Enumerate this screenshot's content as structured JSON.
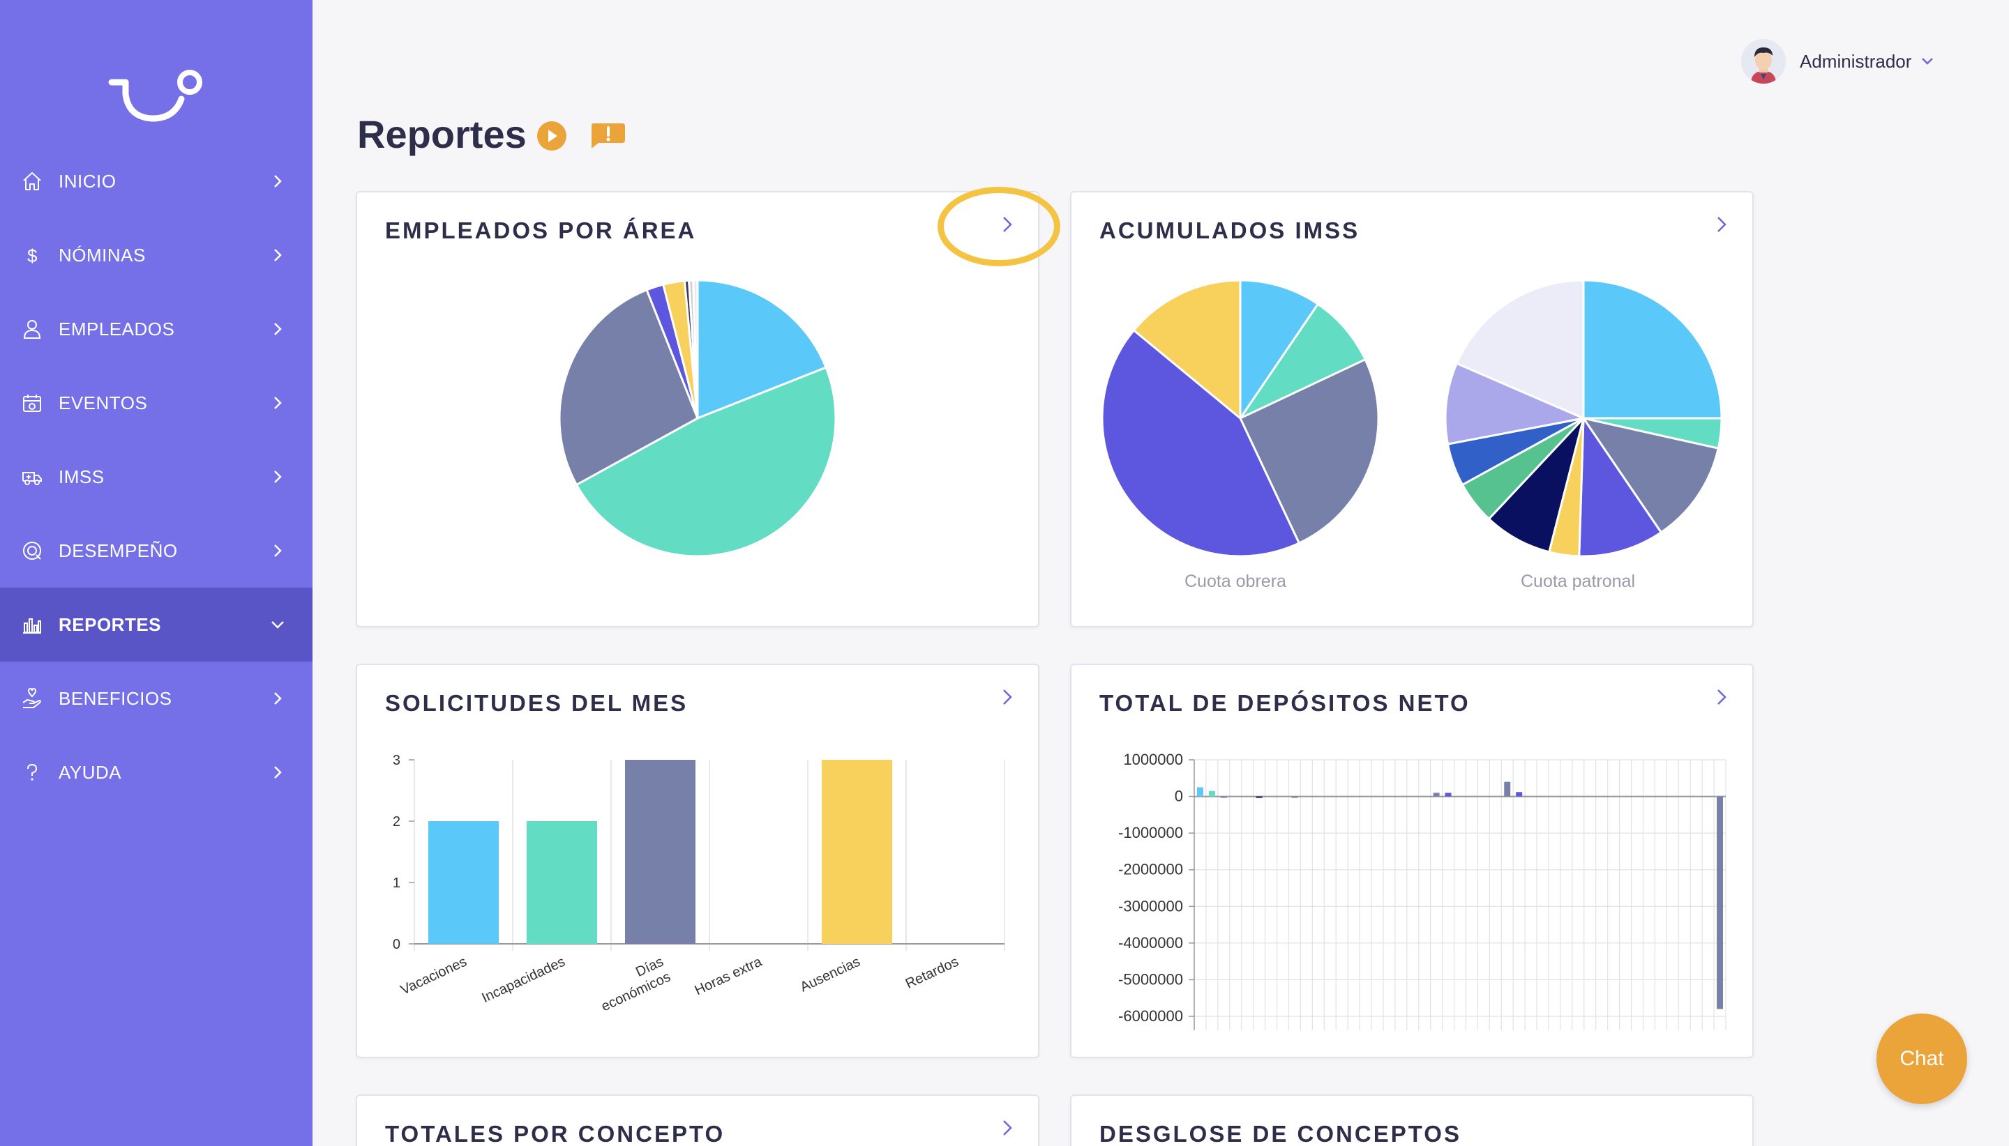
{
  "sidebar": {
    "items": [
      {
        "label": "INICIO",
        "icon": "home-icon"
      },
      {
        "label": "NÓMINAS",
        "icon": "dollar-icon"
      },
      {
        "label": "EMPLEADOS",
        "icon": "user-icon"
      },
      {
        "label": "EVENTOS",
        "icon": "calendar-icon"
      },
      {
        "label": "IMSS",
        "icon": "ambulance-icon"
      },
      {
        "label": "DESEMPEÑO",
        "icon": "target-icon"
      },
      {
        "label": "REPORTES",
        "icon": "bar-chart-icon"
      },
      {
        "label": "BENEFICIOS",
        "icon": "hand-heart-icon"
      },
      {
        "label": "AYUDA",
        "icon": "question-icon"
      }
    ],
    "active": "REPORTES"
  },
  "header": {
    "user_name": "Administrador"
  },
  "page": {
    "title": "Reportes"
  },
  "cards": {
    "employees_by_area": {
      "title": "EMPLEADOS POR ÁREA"
    },
    "imss_accumulated": {
      "title": "ACUMULADOS IMSS",
      "caption_left": "Cuota obrera",
      "caption_right": "Cuota patronal"
    },
    "monthly_requests": {
      "title": "SOLICITUDES DEL MES"
    },
    "net_deposits": {
      "title": "TOTAL DE DEPÓSITOS NETO"
    },
    "totals_by_concept": {
      "title": "TOTALES POR CONCEPTO"
    },
    "concept_breakdown": {
      "title": "DESGLOSE DE CONCEPTOS"
    }
  },
  "chat": {
    "label": "Chat"
  },
  "colors": {
    "sidebar": "#7570e8",
    "sidebar_active": "#5a55c7",
    "accent": "#eba43a",
    "highlight": "#f5c342",
    "arrow": "#6b66d9"
  },
  "chart_data": [
    {
      "type": "pie",
      "slices": [
        {
          "value": 19,
          "color": "#5ac8f8"
        },
        {
          "value": 48,
          "color": "#63dcc4"
        },
        {
          "value": 27,
          "color": "#7680a8"
        },
        {
          "value": 2,
          "color": "#5d57e0"
        },
        {
          "value": 2.5,
          "color": "#f8d15c"
        },
        {
          "value": 0.5,
          "color": "#3a3a55"
        },
        {
          "value": 0.5,
          "color": "#d0d0d8"
        },
        {
          "value": 0.5,
          "color": "#e8e8f0"
        }
      ]
    },
    {
      "type": "pie",
      "caption": "Cuota obrera",
      "slices": [
        {
          "value": 9.5,
          "color": "#5ac8f8"
        },
        {
          "value": 8.5,
          "color": "#63dcc4"
        },
        {
          "value": 25,
          "color": "#7680a8"
        },
        {
          "value": 43,
          "color": "#5d57e0"
        },
        {
          "value": 14,
          "color": "#f8d15c"
        }
      ]
    },
    {
      "type": "pie",
      "caption": "Cuota patronal",
      "slices": [
        {
          "value": 25,
          "color": "#5ac8f8"
        },
        {
          "value": 3.5,
          "color": "#63dcc4"
        },
        {
          "value": 12,
          "color": "#7680a8"
        },
        {
          "value": 10,
          "color": "#5d57e0"
        },
        {
          "value": 3.5,
          "color": "#f8d15c"
        },
        {
          "value": 8,
          "color": "#0a1060"
        },
        {
          "value": 5,
          "color": "#55c290"
        },
        {
          "value": 5,
          "color": "#3060c8"
        },
        {
          "value": 9.5,
          "color": "#aaa8ea"
        },
        {
          "value": 18.5,
          "color": "#ececf8"
        }
      ]
    },
    {
      "type": "bar",
      "categories": [
        "Vacaciones",
        "Incapacidades",
        "Días económicos",
        "Horas extra",
        "Ausencias",
        "Retardos"
      ],
      "values": [
        2,
        2,
        3,
        0,
        3,
        0
      ],
      "colors": [
        "#5ac8f8",
        "#63dcc4",
        "#7680a8",
        "#5d57e0",
        "#f8d15c",
        "#3a3a55"
      ],
      "ylim": [
        0,
        3
      ],
      "yticks": [
        "0",
        "1",
        "2",
        "3"
      ]
    },
    {
      "type": "bar",
      "ylim": [
        -6000000,
        1000000
      ],
      "yticks": [
        "1000000",
        "0",
        "-1000000",
        "-2000000",
        "-3000000",
        "-4000000",
        "-5000000",
        "-6000000"
      ],
      "values": [
        250000,
        150000,
        -30000,
        0,
        0,
        -30000,
        0,
        0,
        -30000,
        0,
        0,
        0,
        0,
        0,
        0,
        0,
        0,
        0,
        0,
        0,
        100000,
        100000,
        0,
        0,
        0,
        0,
        400000,
        120000,
        0,
        0,
        0,
        0,
        0,
        0,
        0,
        0,
        0,
        0,
        0,
        0,
        0,
        0,
        0,
        0,
        -5800000
      ],
      "colors": [
        "#5ac8f8",
        "#63dcc4",
        "#7680a8",
        "#5d57e0",
        "#f8d15c",
        "#0a1060"
      ],
      "grid": true
    }
  ]
}
